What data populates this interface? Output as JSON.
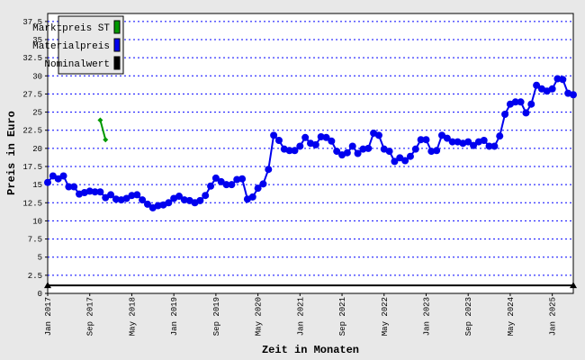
{
  "chart_data": {
    "type": "line",
    "x_label": "Zeit in Monaten",
    "y_label": "Preis in Euro",
    "categories": [
      "Jan 2017",
      null,
      null,
      null,
      null,
      null,
      null,
      null,
      "Sep 2017",
      null,
      null,
      null,
      null,
      null,
      null,
      null,
      "May 2018",
      null,
      null,
      null,
      null,
      null,
      null,
      null,
      "Jan 2019",
      null,
      null,
      null,
      null,
      null,
      null,
      null,
      "Sep 2019",
      null,
      null,
      null,
      null,
      null,
      null,
      null,
      "May 2020",
      null,
      null,
      null,
      null,
      null,
      null,
      null,
      "Jan 2021",
      null,
      null,
      null,
      null,
      null,
      null,
      null,
      "Sep 2021",
      null,
      null,
      null,
      null,
      null,
      null,
      null,
      "May 2022",
      null,
      null,
      null,
      null,
      null,
      null,
      null,
      "Jan 2023",
      null,
      null,
      null,
      null,
      null,
      null,
      null,
      "Sep 2023",
      null,
      null,
      null,
      null,
      null,
      null,
      null,
      "May 2024",
      null,
      null,
      null,
      null,
      null,
      null,
      null,
      "Jan 2025",
      null,
      null,
      null,
      null
    ],
    "ylim": [
      0,
      38.6
    ],
    "yticks": [
      0,
      2.5,
      5,
      7.5,
      10,
      12.5,
      15,
      17.5,
      20,
      22.5,
      25,
      27.5,
      30,
      32.5,
      35,
      37.5
    ],
    "grid": true,
    "legend": "top-left",
    "series": [
      {
        "name": "Marktpreis ST",
        "color": "#009900",
        "marker": "diamond",
        "values": [
          null,
          null,
          null,
          null,
          null,
          null,
          null,
          null,
          null,
          null,
          23.9,
          21.2,
          null,
          null,
          null,
          null,
          null,
          null,
          null,
          null,
          null,
          null,
          null,
          null,
          null,
          null,
          null,
          null,
          null,
          null,
          null,
          null,
          null,
          null,
          null,
          null,
          null,
          null,
          null,
          null,
          null,
          null,
          null,
          null,
          null,
          null,
          null,
          null,
          null,
          null,
          null,
          null,
          null,
          null,
          null,
          null,
          null,
          null,
          null,
          null,
          null,
          null,
          null,
          null,
          null,
          null,
          null,
          null,
          null,
          null,
          null,
          null,
          null,
          null,
          null,
          null,
          null,
          null,
          null,
          null,
          null,
          null,
          null,
          null,
          null,
          null,
          null,
          null,
          null,
          null,
          null,
          null,
          null,
          null,
          null,
          null,
          null,
          null,
          null,
          null,
          null
        ]
      },
      {
        "name": "Materialpreis",
        "color": "#0000ee",
        "marker": "circle",
        "values": [
          15.3,
          16.2,
          15.8,
          16.2,
          14.7,
          14.7,
          13.7,
          13.9,
          14.1,
          14.0,
          14.0,
          13.2,
          13.6,
          13.0,
          12.9,
          13.1,
          13.5,
          13.6,
          12.9,
          12.3,
          11.8,
          12.1,
          12.2,
          12.5,
          13.1,
          13.4,
          12.9,
          12.8,
          12.5,
          12.8,
          13.5,
          14.8,
          15.9,
          15.4,
          15.0,
          15.0,
          15.7,
          15.8,
          13.0,
          13.3,
          14.5,
          15.1,
          17.1,
          21.8,
          21.1,
          19.9,
          19.7,
          19.7,
          20.3,
          21.5,
          20.7,
          20.5,
          21.6,
          21.5,
          21.0,
          19.6,
          19.1,
          19.4,
          20.3,
          19.3,
          19.9,
          20.0,
          22.1,
          21.8,
          19.9,
          19.6,
          18.2,
          18.7,
          18.3,
          18.9,
          19.9,
          21.2,
          21.2,
          19.6,
          19.7,
          21.8,
          21.4,
          20.9,
          20.9,
          20.7,
          20.9,
          20.4,
          20.9,
          21.1,
          20.3,
          20.3,
          21.7,
          24.7,
          26.1,
          26.4,
          26.4,
          24.9,
          26.1,
          28.7,
          28.2,
          27.9,
          28.2,
          29.6,
          29.5,
          27.6,
          27.4
        ]
      },
      {
        "name": "Nominalwert",
        "color": "#000000",
        "marker": "triangle-ends",
        "values": [
          1.1,
          1.1,
          1.1,
          1.1,
          1.1,
          1.1,
          1.1,
          1.1,
          1.1,
          1.1,
          1.1,
          1.1,
          1.1,
          1.1,
          1.1,
          1.1,
          1.1,
          1.1,
          1.1,
          1.1,
          1.1,
          1.1,
          1.1,
          1.1,
          1.1,
          1.1,
          1.1,
          1.1,
          1.1,
          1.1,
          1.1,
          1.1,
          1.1,
          1.1,
          1.1,
          1.1,
          1.1,
          1.1,
          1.1,
          1.1,
          1.1,
          1.1,
          1.1,
          1.1,
          1.1,
          1.1,
          1.1,
          1.1,
          1.1,
          1.1,
          1.1,
          1.1,
          1.1,
          1.1,
          1.1,
          1.1,
          1.1,
          1.1,
          1.1,
          1.1,
          1.1,
          1.1,
          1.1,
          1.1,
          1.1,
          1.1,
          1.1,
          1.1,
          1.1,
          1.1,
          1.1,
          1.1,
          1.1,
          1.1,
          1.1,
          1.1,
          1.1,
          1.1,
          1.1,
          1.1,
          1.1,
          1.1,
          1.1,
          1.1,
          1.1,
          1.1,
          1.1,
          1.1,
          1.1,
          1.1,
          1.1,
          1.1,
          1.1,
          1.1,
          1.1,
          1.1,
          1.1,
          1.1,
          1.1,
          1.1,
          1.1
        ]
      }
    ]
  }
}
